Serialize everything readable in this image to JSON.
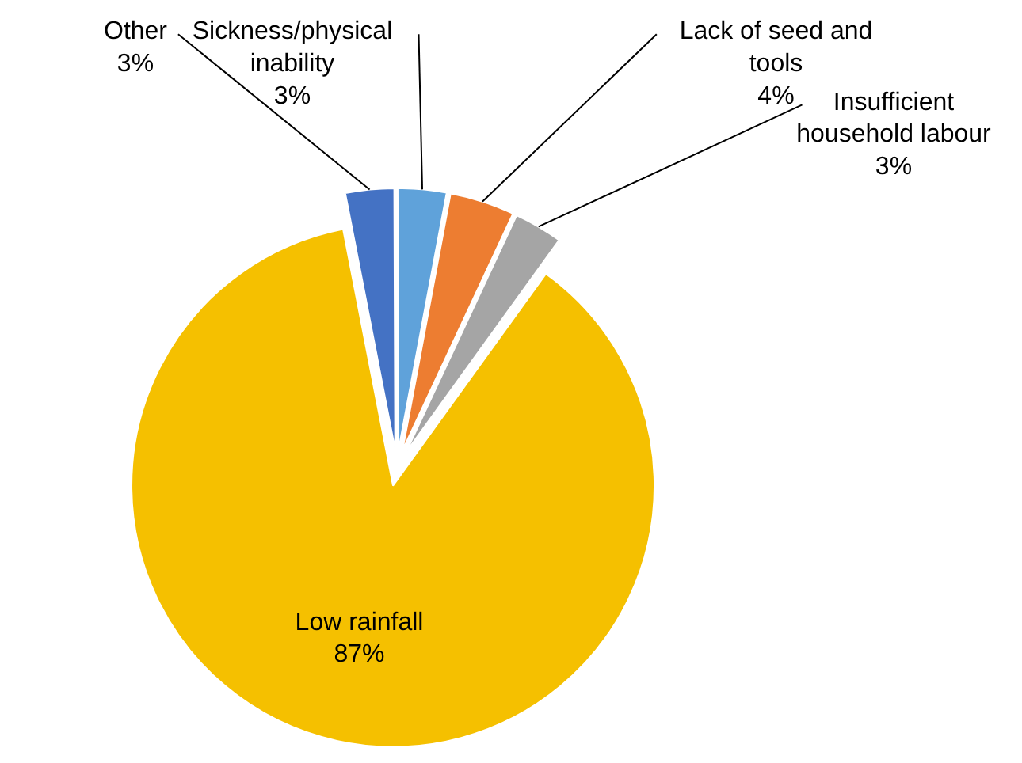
{
  "chart_data": {
    "type": "pie",
    "categories": [
      "Other",
      "Sickness/physical inability",
      "Lack of seed and tools",
      "Insufficient household labour",
      "Low rainfall"
    ],
    "values": [
      3,
      3,
      4,
      3,
      87
    ],
    "value_labels": [
      "3%",
      "3%",
      "4%",
      "3%",
      "87%"
    ],
    "colors": [
      "#4472c4",
      "#5fa2da",
      "#ed7d31",
      "#a5a5a5",
      "#f5c000"
    ]
  }
}
